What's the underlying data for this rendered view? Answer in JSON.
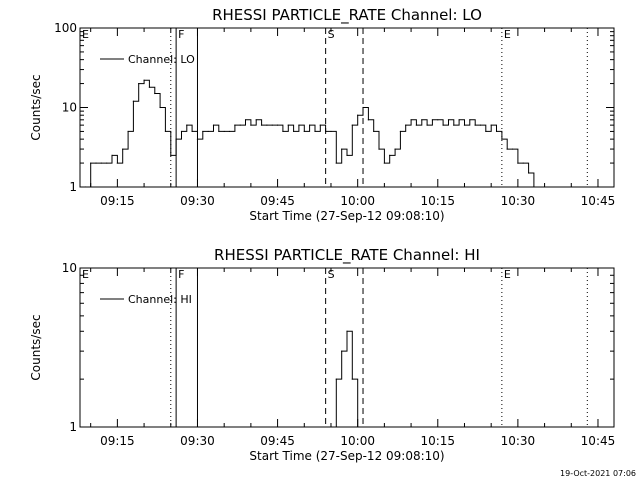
{
  "footer": {
    "timestamp": "19-Oct-2021 07:06"
  },
  "chart_data": [
    {
      "type": "line",
      "title": "RHESSI PARTICLE_RATE Channel: LO",
      "xlabel": "Start Time (27-Sep-12 09:08:10)",
      "ylabel": "Counts/sec",
      "yscale": "log",
      "xlim": [
        "09:08",
        "10:48"
      ],
      "ylim": [
        1,
        100
      ],
      "x_ticks": [
        "09:15",
        "09:30",
        "09:45",
        "10:00",
        "10:15",
        "10:30",
        "10:45"
      ],
      "y_ticks": [
        "1",
        "10",
        "100"
      ],
      "grid": false,
      "legend": {
        "position": "top-left",
        "entries": [
          "Channel: LO"
        ]
      },
      "series": [
        {
          "name": "Channel: LO",
          "x": [
            "09:09",
            "09:10",
            "09:11",
            "09:12",
            "09:13",
            "09:14",
            "09:15",
            "09:16",
            "09:17",
            "09:18",
            "09:19",
            "09:20",
            "09:21",
            "09:22",
            "09:23",
            "09:24",
            "09:25",
            "09:26",
            "09:27",
            "09:28",
            "09:29",
            "09:30",
            "09:31",
            "09:32",
            "09:33",
            "09:34",
            "09:35",
            "09:36",
            "09:37",
            "09:38",
            "09:39",
            "09:40",
            "09:41",
            "09:42",
            "09:43",
            "09:44",
            "09:45",
            "09:46",
            "09:47",
            "09:48",
            "09:49",
            "09:50",
            "09:51",
            "09:52",
            "09:53",
            "09:54",
            "09:55",
            "09:56",
            "09:57",
            "09:58",
            "09:59",
            "10:00",
            "10:01",
            "10:02",
            "10:03",
            "10:04",
            "10:05",
            "10:06",
            "10:07",
            "10:08",
            "10:09",
            "10:10",
            "10:11",
            "10:12",
            "10:13",
            "10:14",
            "10:15",
            "10:16",
            "10:17",
            "10:18",
            "10:19",
            "10:20",
            "10:21",
            "10:22",
            "10:23",
            "10:24",
            "10:25",
            "10:26",
            "10:27",
            "10:28",
            "10:29",
            "10:30",
            "10:31",
            "10:32",
            "10:33"
          ],
          "values": [
            1.0,
            2.0,
            2.0,
            2.0,
            2.0,
            2.5,
            2.0,
            3.0,
            5.0,
            12,
            20,
            22,
            18,
            15,
            10,
            5,
            2.5,
            4,
            5,
            6,
            5,
            4,
            5,
            5,
            6,
            5,
            5,
            5,
            6,
            6,
            7,
            6,
            7,
            6,
            6,
            6,
            6,
            5,
            6,
            5,
            6,
            5,
            6,
            5,
            6,
            5,
            5,
            2,
            3,
            2.5,
            6,
            8,
            10,
            7,
            5,
            3,
            2,
            2.5,
            3,
            5,
            6,
            7,
            6,
            7,
            6,
            7,
            7,
            6,
            7,
            6,
            7,
            6,
            7,
            6,
            6,
            5,
            6,
            5,
            4,
            3,
            3,
            2,
            2,
            1.5,
            1.0
          ]
        }
      ],
      "markers": [
        {
          "time": "09:08",
          "label": "E",
          "style": "dotted"
        },
        {
          "time": "09:25",
          "label": "",
          "style": "dotted"
        },
        {
          "time": "09:26",
          "label": "F",
          "style": "solid"
        },
        {
          "time": "09:30",
          "label": "",
          "style": "solid"
        },
        {
          "time": "09:54",
          "label": "S",
          "style": "dashed"
        },
        {
          "time": "10:01",
          "label": "",
          "style": "dashed"
        },
        {
          "time": "10:27",
          "label": "E",
          "style": "dotted"
        },
        {
          "time": "10:43",
          "label": "",
          "style": "dotted"
        }
      ]
    },
    {
      "type": "line",
      "title": "RHESSI PARTICLE_RATE Channel: HI",
      "xlabel": "Start Time (27-Sep-12 09:08:10)",
      "ylabel": "Counts/sec",
      "yscale": "log",
      "xlim": [
        "09:08",
        "10:48"
      ],
      "ylim": [
        1,
        10
      ],
      "x_ticks": [
        "09:15",
        "09:30",
        "09:45",
        "10:00",
        "10:15",
        "10:30",
        "10:45"
      ],
      "y_ticks": [
        "1",
        "10"
      ],
      "grid": false,
      "legend": {
        "position": "top-left",
        "entries": [
          "Channel: HI"
        ]
      },
      "series": [
        {
          "name": "Channel: HI",
          "x": [
            "09:55",
            "09:56",
            "09:57",
            "09:58",
            "09:59",
            "10:00"
          ],
          "values": [
            1.0,
            2.0,
            3.0,
            4.0,
            2.0,
            1.0
          ]
        }
      ],
      "markers": [
        {
          "time": "09:08",
          "label": "E",
          "style": "dotted"
        },
        {
          "time": "09:25",
          "label": "",
          "style": "dotted"
        },
        {
          "time": "09:26",
          "label": "F",
          "style": "solid"
        },
        {
          "time": "09:30",
          "label": "",
          "style": "solid"
        },
        {
          "time": "09:54",
          "label": "S",
          "style": "dashed"
        },
        {
          "time": "10:01",
          "label": "",
          "style": "dashed"
        },
        {
          "time": "10:27",
          "label": "E",
          "style": "dotted"
        },
        {
          "time": "10:43",
          "label": "",
          "style": "dotted"
        }
      ]
    }
  ]
}
